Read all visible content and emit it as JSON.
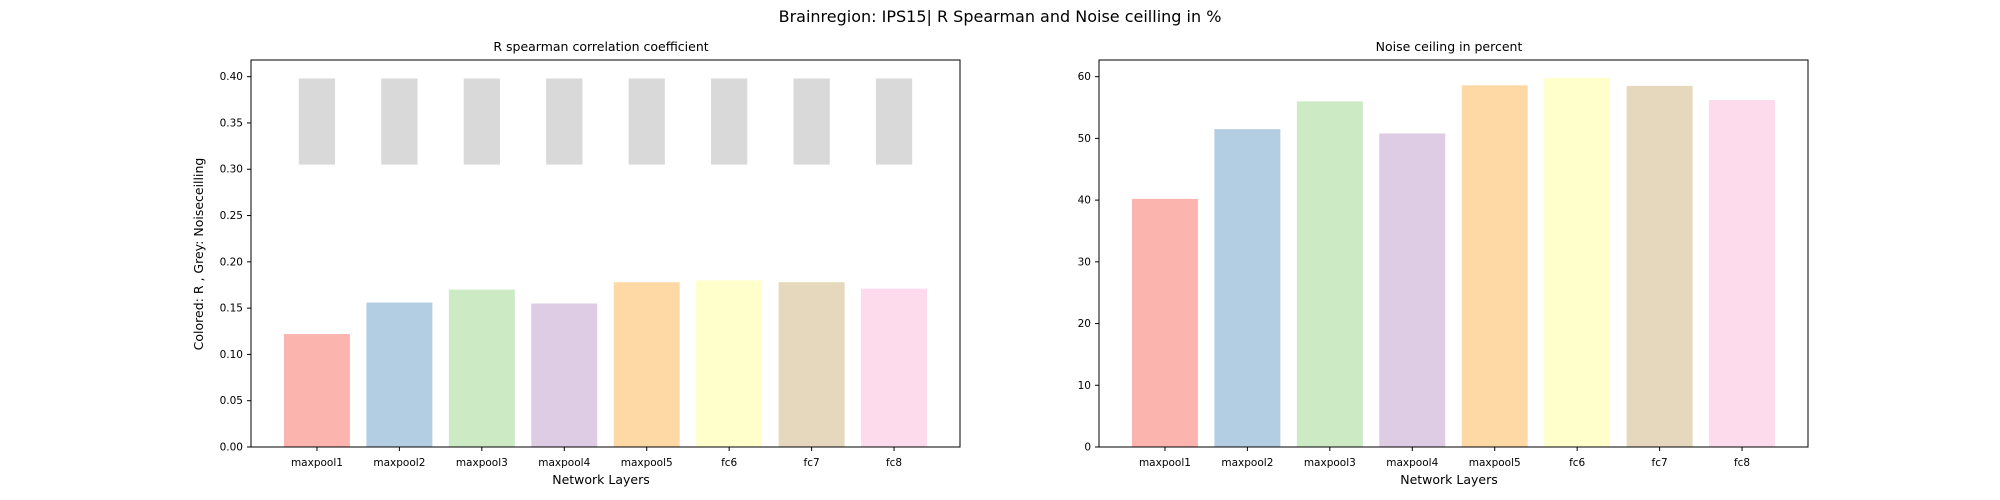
{
  "figure": {
    "suptitle": "Brainregion: IPS15| R Spearman and Noise ceilling in %"
  },
  "colors": {
    "palette": [
      "#fbb4ae",
      "#b3cde3",
      "#ccebc5",
      "#decbe4",
      "#fed9a6",
      "#ffffcc",
      "#e5d8bd",
      "#fddaec"
    ],
    "noise_ceiling_grey": "#d9d9d9",
    "axis": "#000000"
  },
  "chart_data": [
    {
      "type": "bar",
      "title": "R spearman correlation coefficient",
      "xlabel": "Network Layers",
      "ylabel": "Colored: R , Grey: Noiseceilling",
      "categories": [
        "maxpool1",
        "maxpool2",
        "maxpool3",
        "maxpool4",
        "maxpool5",
        "fc6",
        "fc7",
        "fc8"
      ],
      "series": [
        {
          "values": [
            0.122,
            0.156,
            0.17,
            0.155,
            0.178,
            0.18,
            0.178,
            0.171
          ]
        }
      ],
      "noise_ceiling": {
        "lower": 0.305,
        "upper": 0.398
      },
      "ylim": [
        0,
        0.418
      ],
      "yticks": [
        "0.00",
        "0.05",
        "0.10",
        "0.15",
        "0.20",
        "0.25",
        "0.30",
        "0.35",
        "0.40"
      ],
      "grid": false
    },
    {
      "type": "bar",
      "title": "Noise ceiling in percent",
      "xlabel": "Network Layers",
      "ylabel": "",
      "categories": [
        "maxpool1",
        "maxpool2",
        "maxpool3",
        "maxpool4",
        "maxpool5",
        "fc6",
        "fc7",
        "fc8"
      ],
      "series": [
        {
          "values": [
            40.2,
            51.5,
            56.0,
            50.8,
            58.6,
            59.8,
            58.5,
            56.2
          ]
        }
      ],
      "ylim": [
        0,
        62.7
      ],
      "yticks": [
        "0",
        "10",
        "20",
        "30",
        "40",
        "50",
        "60"
      ],
      "grid": false
    }
  ]
}
